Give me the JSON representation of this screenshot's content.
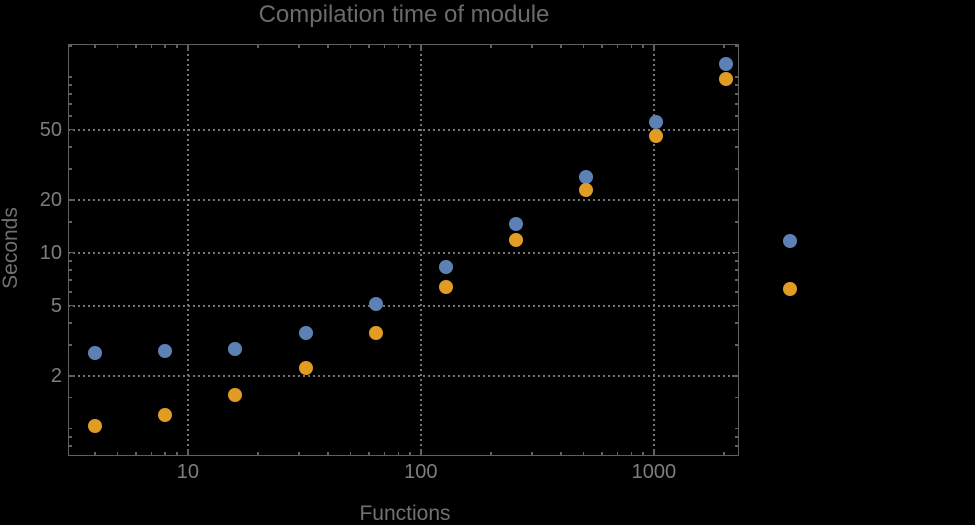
{
  "title": "Compilation time of module",
  "colors": {
    "background": "#000000",
    "frame": "#606060",
    "grid": "#757575",
    "title_text": "#6b6b6b",
    "axis_label_text": "#717171",
    "tick_label_text": "#7d7d7d",
    "series_blue": "#5e81b5",
    "series_orange": "#e19c24"
  },
  "chart_data": {
    "type": "scatter",
    "title": "Compilation time of module",
    "xlabel": "Functions",
    "ylabel": "Seconds",
    "x_scale": "log",
    "y_scale": "log",
    "xlim": [
      3.06,
      2320
    ],
    "ylim": [
      0.7,
      153.5
    ],
    "grid": "dotted gridlines at labeled ticks",
    "legend_position": "outside right, markers only (no visible label text)",
    "x_major_ticks": [
      10,
      100,
      1000
    ],
    "x_major_tick_labels": [
      "10",
      "100",
      "1000"
    ],
    "y_major_ticks": [
      2,
      5,
      10,
      20,
      50
    ],
    "y_major_tick_labels": [
      "2",
      "5",
      "10",
      "20",
      "50"
    ],
    "x": [
      4,
      8,
      16,
      32,
      64,
      128,
      256,
      512,
      1024,
      2048
    ],
    "series": [
      {
        "name": "series-blue",
        "color": "#5e81b5",
        "values": [
          2.7,
          2.75,
          2.85,
          3.5,
          5.1,
          8.3,
          14.6,
          27,
          55,
          118
        ]
      },
      {
        "name": "series-orange",
        "color": "#e19c24",
        "values": [
          1.03,
          1.2,
          1.55,
          2.2,
          3.5,
          6.4,
          11.8,
          22.7,
          46,
          97
        ]
      }
    ],
    "legend_markers": [
      {
        "series": "series-blue",
        "color": "#5e81b5",
        "label": ""
      },
      {
        "series": "series-orange",
        "color": "#e19c24",
        "label": ""
      }
    ]
  }
}
